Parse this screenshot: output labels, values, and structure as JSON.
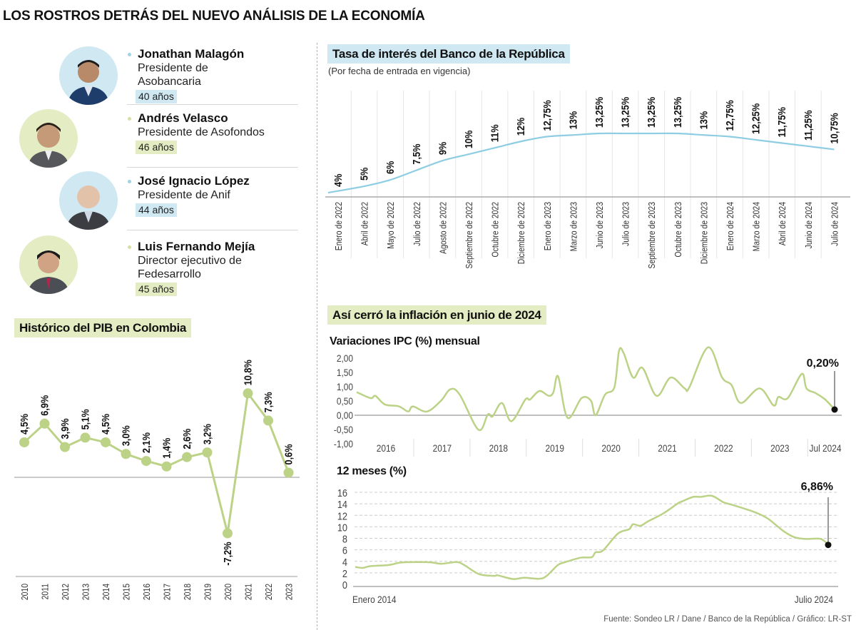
{
  "header": {
    "title": "LOS ROSTROS DETRÁS DEL NUEVO ANÁLISIS DE LA ECONOMÍA"
  },
  "colors": {
    "blue": "#8ecde2",
    "blue_light": "#cfe8f2",
    "green": "#bcd286",
    "green_light": "#e4ecc3"
  },
  "people": [
    {
      "name": "Jonathan Malagón",
      "role": "Presidente de Asobancaria",
      "age": "40 años",
      "accent": "blue"
    },
    {
      "name": "Andrés Velasco",
      "role": "Presidente de Asofondos",
      "age": "46 años",
      "accent": "green"
    },
    {
      "name": "José Ignacio López",
      "role": "Presidente de Anif",
      "age": "44 años",
      "accent": "blue"
    },
    {
      "name": "Luis Fernando Mejía",
      "role": "Director ejecutivo de Fedesarrollo",
      "age": "45 años",
      "accent": "green"
    }
  ],
  "inflation_section_title": "Así cerró la inflación en junio de 2024",
  "chart_data": [
    {
      "type": "line",
      "title": "Histórico del PIB en Colombia",
      "categories": [
        "2010",
        "2011",
        "2012",
        "2013",
        "2014",
        "2015",
        "2016",
        "2017",
        "2018",
        "2019",
        "2020",
        "2021",
        "2022",
        "2023"
      ],
      "values": [
        4.5,
        6.9,
        3.9,
        5.1,
        4.5,
        3.0,
        2.1,
        1.4,
        2.6,
        3.2,
        -7.2,
        10.8,
        7.3,
        0.6
      ],
      "labels": [
        "4,5%",
        "6,9%",
        "3,9%",
        "5,1%",
        "4,5%",
        "3,0%",
        "2,1%",
        "1,4%",
        "2,6%",
        "3,2%",
        "-7,2%",
        "10,8%",
        "7,3%",
        "0,6%"
      ],
      "color": "#bcd286"
    },
    {
      "type": "line",
      "title": "Tasa de interés del Banco de la República",
      "subtitle": "(Por fecha de entrada en vigencia)",
      "categories": [
        "Enero de 2022",
        "Abril de 2022",
        "Mayo de 2022",
        "Julio de 2022",
        "Agosto de 2022",
        "Septiembre de 2022",
        "Octubre de 2022",
        "Diciembre de 2022",
        "Enero de 2023",
        "Marzo de 2023",
        "Junio de 2023",
        "Julio de 2023",
        "Septiembre de 2023",
        "Octubre de 2023",
        "Diciembre de 2023",
        "Enero de 2024",
        "Marzo de 2024",
        "Abril de 2024",
        "Junio de 2024",
        "Julio de 2024"
      ],
      "values": [
        4,
        5,
        6,
        7.5,
        9,
        10,
        11,
        12,
        12.75,
        13,
        13.25,
        13.25,
        13.25,
        13.25,
        13,
        12.75,
        12.25,
        11.75,
        11.25,
        10.75
      ],
      "labels": [
        "4%",
        "5%",
        "6%",
        "7,5%",
        "9%",
        "10%",
        "11%",
        "12%",
        "12,75%",
        "13%",
        "13,25%",
        "13,25%",
        "13,25%",
        "13,25%",
        "13%",
        "12,75%",
        "12,25%",
        "11,75%",
        "11,25%",
        "10,75%"
      ],
      "color": "#8ecde2"
    },
    {
      "type": "line",
      "title": "Variaciones IPC (%) mensual",
      "ylim": [
        -1,
        2.5
      ],
      "yticks": [
        2,
        1.5,
        1,
        0.5,
        0,
        -0.5,
        -1
      ],
      "ytick_labels": [
        "2,00",
        "1,50",
        "1,00",
        "0,50",
        "0,00",
        "-0,50",
        "-1,00"
      ],
      "xtick_labels": [
        "2016",
        "2017",
        "2018",
        "2019",
        "2020",
        "2021",
        "2022",
        "2023",
        "Jul 2024"
      ],
      "x": [
        "2016-01",
        "2016-04",
        "2016-05",
        "2016-07",
        "2016-10",
        "2016-12",
        "2017-01",
        "2017-04",
        "2017-07",
        "2017-09",
        "2017-11",
        "2018-03",
        "2018-05",
        "2018-06",
        "2018-08",
        "2018-10",
        "2019-01",
        "2019-02",
        "2019-04",
        "2019-06",
        "2019-07",
        "2019-08",
        "2019-10",
        "2020-01",
        "2020-03",
        "2020-04",
        "2020-06",
        "2020-08",
        "2020-09",
        "2020-10",
        "2020-12",
        "2021-02",
        "2021-05",
        "2021-08",
        "2021-11",
        "2021-12",
        "2022-04",
        "2022-07",
        "2022-09",
        "2022-11",
        "2023-03",
        "2023-06",
        "2023-07",
        "2023-09",
        "2023-12",
        "2024-01",
        "2024-03",
        "2024-05",
        "2024-07"
      ],
      "values": [
        0.81,
        0.6,
        0.68,
        0.38,
        0.31,
        0.13,
        0.31,
        0.13,
        0.51,
        0.91,
        0.72,
        -0.51,
        0.03,
        -0.04,
        0.43,
        -0.21,
        0.55,
        0.55,
        0.85,
        0.68,
        0.81,
        1.36,
        -0.09,
        0.6,
        0.51,
        0.0,
        0.72,
        0.98,
        2.26,
        2.17,
        1.32,
        1.66,
        0.68,
        1.32,
        0.94,
        0.98,
        2.38,
        1.32,
        1.06,
        0.43,
        0.94,
        0.34,
        0.64,
        0.6,
        1.45,
        0.94,
        0.77,
        0.55,
        0.2
      ],
      "annotation": "0,20%",
      "color": "#bcd286"
    },
    {
      "type": "line",
      "title": "12 meses (%)",
      "ylim": [
        0,
        16
      ],
      "yticks": [
        16,
        14,
        12,
        10,
        8,
        6,
        4,
        2,
        0
      ],
      "ytick_labels": [
        "16",
        "14",
        "12",
        "10",
        "8",
        "6",
        "4",
        "2",
        "0"
      ],
      "xtick_labels": [
        "Enero 2014",
        "Julio 2024"
      ],
      "grid": true,
      "x": [
        "2014-01",
        "2014-03",
        "2014-05",
        "2014-10",
        "2015-01",
        "2015-05",
        "2015-09",
        "2015-12",
        "2016-04",
        "2016-06",
        "2016-10",
        "2017-02",
        "2017-03",
        "2017-07",
        "2017-10",
        "2018-02",
        "2018-04",
        "2018-07",
        "2018-09",
        "2019-01",
        "2019-04",
        "2019-05",
        "2019-07",
        "2019-11",
        "2020-02",
        "2020-03",
        "2020-05",
        "2020-07",
        "2020-11",
        "2021-03",
        "2021-04",
        "2021-07",
        "2021-09",
        "2021-12",
        "2022-03",
        "2022-05",
        "2022-09",
        "2022-12",
        "2023-03",
        "2023-07",
        "2023-10",
        "2024-01",
        "2024-05",
        "2024-07"
      ],
      "values": [
        3.03,
        2.86,
        3.16,
        3.37,
        3.79,
        3.87,
        3.83,
        3.58,
        3.87,
        3.37,
        1.77,
        1.47,
        1.56,
        0.93,
        1.14,
        0.97,
        1.47,
        3.37,
        3.87,
        4.63,
        4.72,
        5.56,
        5.89,
        8.84,
        9.6,
        10.44,
        10.19,
        10.95,
        12.3,
        14.1,
        14.4,
        15.2,
        15.2,
        15.4,
        14.3,
        13.9,
        13.1,
        12.4,
        11.4,
        9.3,
        8.2,
        7.9,
        7.9,
        6.86
      ],
      "annotation": "6,86%",
      "color": "#bcd286"
    }
  ],
  "footer": {
    "source": "Fuente: Sondeo LR / Dane / Banco de la República / Gráfico: LR-ST"
  }
}
